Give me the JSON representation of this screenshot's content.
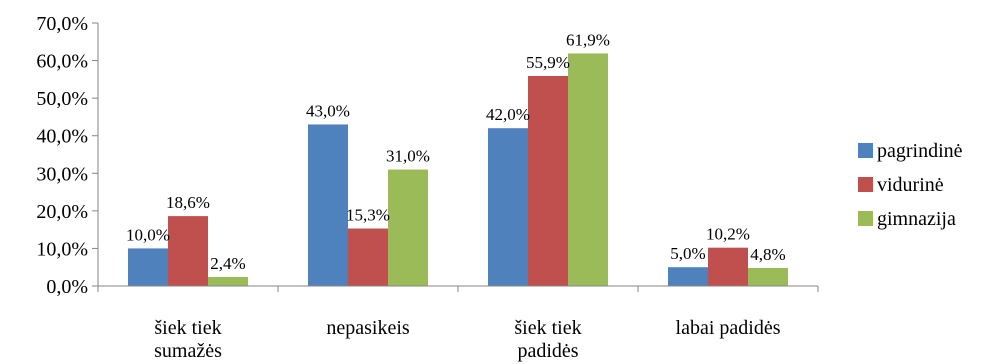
{
  "chart_data": {
    "type": "bar",
    "categories": [
      [
        "šiek tiek",
        "sumažės"
      ],
      [
        "nepasikeis"
      ],
      [
        "šiek tiek",
        "padidės"
      ],
      [
        "labai padidės"
      ]
    ],
    "series": [
      {
        "name": "pagrindinė",
        "color": "#4F81BD",
        "values": [
          10.0,
          43.0,
          42.0,
          5.0
        ],
        "labels": [
          "10,0%",
          "43,0%",
          "42,0%",
          "5,0%"
        ]
      },
      {
        "name": "vidurinė",
        "color": "#C0504D",
        "values": [
          18.6,
          15.3,
          55.9,
          10.2
        ],
        "labels": [
          "18,6%",
          "15,3%",
          "55,9%",
          "10,2%"
        ]
      },
      {
        "name": "gimnazija",
        "color": "#9BBB59",
        "values": [
          2.4,
          31.0,
          61.9,
          4.8
        ],
        "labels": [
          "2,4%",
          "31,0%",
          "61,9%",
          "4,8%"
        ]
      }
    ],
    "yticks": [
      0,
      10,
      20,
      30,
      40,
      50,
      60,
      70
    ],
    "ytick_labels": [
      "0,0%",
      "10,0%",
      "20,0%",
      "30,0%",
      "40,0%",
      "50,0%",
      "60,0%",
      "70,0%"
    ],
    "ylim": [
      0,
      70
    ],
    "grid": false,
    "legend_position": "right"
  }
}
